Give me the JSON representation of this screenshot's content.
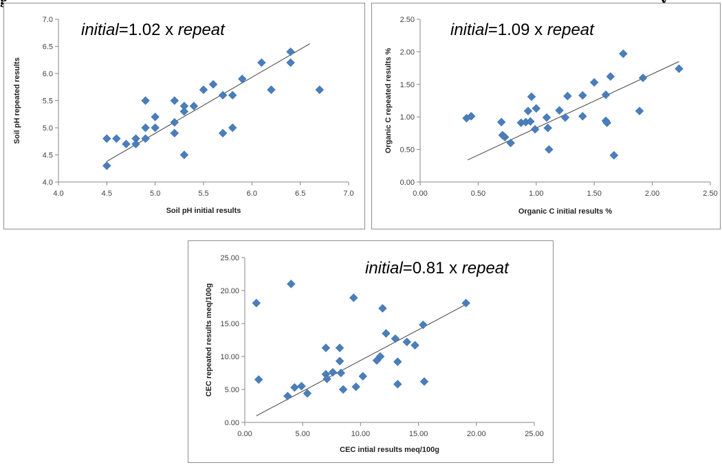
{
  "caption": {
    "left_fragment": "g",
    "right_fragment": "y"
  },
  "colors": {
    "marker": "#4a7ebb",
    "trendline": "#404040",
    "axis": "#868686",
    "frame": "#8c8c8c"
  },
  "chart_data": [
    {
      "type": "scatter",
      "equation": {
        "lhs": "initial",
        "middle": "=1.02 x ",
        "rhs": "repeat"
      },
      "xlabel": "Soil pH initial results",
      "ylabel": "Soil pH repeated results",
      "xlim": [
        4.0,
        7.0
      ],
      "ylim": [
        4.0,
        7.0
      ],
      "xticks": [
        "4.0",
        "4.5",
        "5.0",
        "5.5",
        "6.0",
        "6.5",
        "7.0"
      ],
      "yticks": [
        "4.0",
        "4.5",
        "5.0",
        "5.5",
        "6.0",
        "6.5",
        "7.0"
      ],
      "x_tick_values": [
        4.0,
        4.5,
        5.0,
        5.5,
        6.0,
        6.5,
        7.0
      ],
      "y_tick_values": [
        4.0,
        4.5,
        5.0,
        5.5,
        6.0,
        6.5,
        7.0
      ],
      "grid": false,
      "trendline": [
        [
          4.5,
          4.38
        ],
        [
          6.6,
          6.55
        ]
      ],
      "points": [
        [
          4.5,
          4.8
        ],
        [
          4.5,
          4.3
        ],
        [
          4.6,
          4.8
        ],
        [
          4.7,
          4.7
        ],
        [
          4.8,
          4.8
        ],
        [
          4.8,
          4.7
        ],
        [
          4.9,
          5.5
        ],
        [
          4.9,
          5.0
        ],
        [
          4.9,
          4.8
        ],
        [
          5.0,
          5.2
        ],
        [
          5.0,
          5.0
        ],
        [
          5.2,
          5.5
        ],
        [
          5.2,
          5.1
        ],
        [
          5.2,
          4.9
        ],
        [
          5.3,
          5.4
        ],
        [
          5.3,
          5.3
        ],
        [
          5.3,
          4.5
        ],
        [
          5.4,
          5.4
        ],
        [
          5.5,
          5.7
        ],
        [
          5.6,
          5.8
        ],
        [
          5.7,
          5.6
        ],
        [
          5.7,
          4.9
        ],
        [
          5.8,
          5.6
        ],
        [
          5.8,
          5.0
        ],
        [
          5.9,
          5.9
        ],
        [
          6.1,
          6.2
        ],
        [
          6.2,
          5.7
        ],
        [
          6.4,
          6.4
        ],
        [
          6.4,
          6.2
        ],
        [
          6.7,
          5.7
        ]
      ]
    },
    {
      "type": "scatter",
      "equation": {
        "lhs": "initial",
        "middle": "=1.09 x ",
        "rhs": "repeat"
      },
      "xlabel": "Organic C initial results %",
      "ylabel": "Organic C repeated results %",
      "xlim": [
        0.0,
        2.5
      ],
      "ylim": [
        0.0,
        2.5
      ],
      "xticks": [
        "0.00",
        "0.50",
        "1.00",
        "1.50",
        "2.00",
        "2.50"
      ],
      "yticks": [
        "0.00",
        "0.50",
        "1.00",
        "1.50",
        "2.00",
        "2.50"
      ],
      "x_tick_values": [
        0.0,
        0.5,
        1.0,
        1.5,
        2.0,
        2.5
      ],
      "y_tick_values": [
        0.0,
        0.5,
        1.0,
        1.5,
        2.0,
        2.5
      ],
      "grid": false,
      "trendline": [
        [
          0.41,
          0.34
        ],
        [
          2.23,
          1.85
        ]
      ],
      "points": [
        [
          0.4,
          0.98
        ],
        [
          0.44,
          1.01
        ],
        [
          0.7,
          0.92
        ],
        [
          0.71,
          0.72
        ],
        [
          0.73,
          0.69
        ],
        [
          0.78,
          0.6
        ],
        [
          0.87,
          0.91
        ],
        [
          0.91,
          0.92
        ],
        [
          0.93,
          1.09
        ],
        [
          0.95,
          0.93
        ],
        [
          0.96,
          1.31
        ],
        [
          0.99,
          0.81
        ],
        [
          1.0,
          1.13
        ],
        [
          1.09,
          0.99
        ],
        [
          1.1,
          0.83
        ],
        [
          1.11,
          0.5
        ],
        [
          1.2,
          1.1
        ],
        [
          1.25,
          0.99
        ],
        [
          1.27,
          1.32
        ],
        [
          1.4,
          1.33
        ],
        [
          1.4,
          1.01
        ],
        [
          1.5,
          1.53
        ],
        [
          1.6,
          1.34
        ],
        [
          1.6,
          0.94
        ],
        [
          1.61,
          0.91
        ],
        [
          1.64,
          1.62
        ],
        [
          1.67,
          0.41
        ],
        [
          1.75,
          1.97
        ],
        [
          1.89,
          1.09
        ],
        [
          1.92,
          1.6
        ],
        [
          2.23,
          1.74
        ]
      ]
    },
    {
      "type": "scatter",
      "equation": {
        "lhs": "initial",
        "middle": "=0.81 x ",
        "rhs": "repeat"
      },
      "xlabel": "CEC intial results meq/100g",
      "ylabel": "CEC repeated results meq/100g",
      "xlim": [
        0,
        25
      ],
      "ylim": [
        0,
        25
      ],
      "xticks": [
        "0.00",
        "5.00",
        "10.00",
        "15.00",
        "20.00",
        "25.00"
      ],
      "yticks": [
        "0.00",
        "5.00",
        "10.00",
        "15.00",
        "20.00",
        "25.00"
      ],
      "x_tick_values": [
        0,
        5,
        10,
        15,
        20,
        25
      ],
      "y_tick_values": [
        0,
        5,
        10,
        15,
        20,
        25
      ],
      "grid": false,
      "trendline": [
        [
          1.0,
          1.0
        ],
        [
          19.0,
          17.8
        ]
      ],
      "points": [
        [
          1.0,
          18.1
        ],
        [
          1.2,
          6.5
        ],
        [
          3.7,
          4.0
        ],
        [
          4.0,
          21.0
        ],
        [
          4.3,
          5.3
        ],
        [
          4.9,
          5.5
        ],
        [
          5.4,
          4.4
        ],
        [
          7.0,
          11.3
        ],
        [
          7.0,
          7.3
        ],
        [
          7.1,
          6.6
        ],
        [
          7.6,
          7.6
        ],
        [
          8.2,
          11.3
        ],
        [
          8.2,
          9.3
        ],
        [
          8.3,
          7.5
        ],
        [
          8.5,
          5.0
        ],
        [
          9.4,
          18.9
        ],
        [
          9.6,
          5.4
        ],
        [
          10.2,
          7.0
        ],
        [
          11.4,
          9.4
        ],
        [
          11.7,
          10.0
        ],
        [
          11.9,
          17.3
        ],
        [
          12.2,
          13.5
        ],
        [
          13.0,
          12.7
        ],
        [
          13.2,
          9.2
        ],
        [
          13.2,
          5.8
        ],
        [
          14.0,
          12.2
        ],
        [
          14.7,
          11.7
        ],
        [
          15.4,
          14.8
        ],
        [
          15.5,
          6.2
        ],
        [
          19.1,
          18.1
        ]
      ]
    }
  ]
}
